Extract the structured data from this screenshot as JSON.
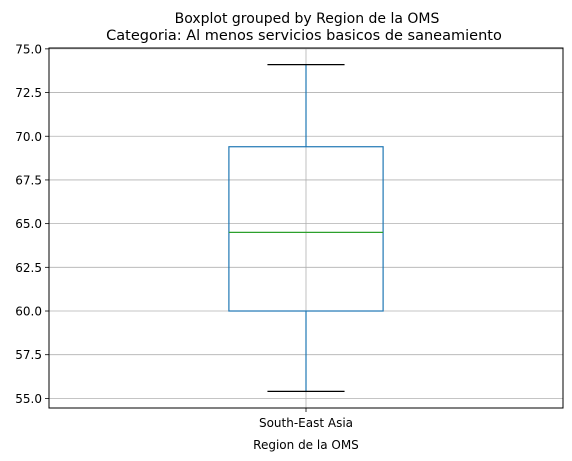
{
  "chart_data": {
    "type": "boxplot",
    "suptitle": "Boxplot grouped by Region de la OMS",
    "title": "Categoria: Al menos servicios basicos de saneamiento",
    "xlabel": "Region de la OMS",
    "ylabel": "",
    "categories": [
      "South-East Asia"
    ],
    "boxes": [
      {
        "category": "South-East Asia",
        "whisker_low": 55.4,
        "q1": 60.0,
        "median": 64.5,
        "q3": 69.4,
        "whisker_high": 74.1
      }
    ],
    "ylim": [
      54.45,
      75.05
    ],
    "yticks": [
      "55.0",
      "57.5",
      "60.0",
      "62.5",
      "65.0",
      "67.5",
      "70.0",
      "72.5",
      "75.0"
    ],
    "grid": true,
    "colors": {
      "box": "#1f77b4",
      "median": "#2ca02c",
      "whisker": "#1f77b4",
      "cap": "#000000",
      "grid": "#b0b0b0"
    }
  }
}
